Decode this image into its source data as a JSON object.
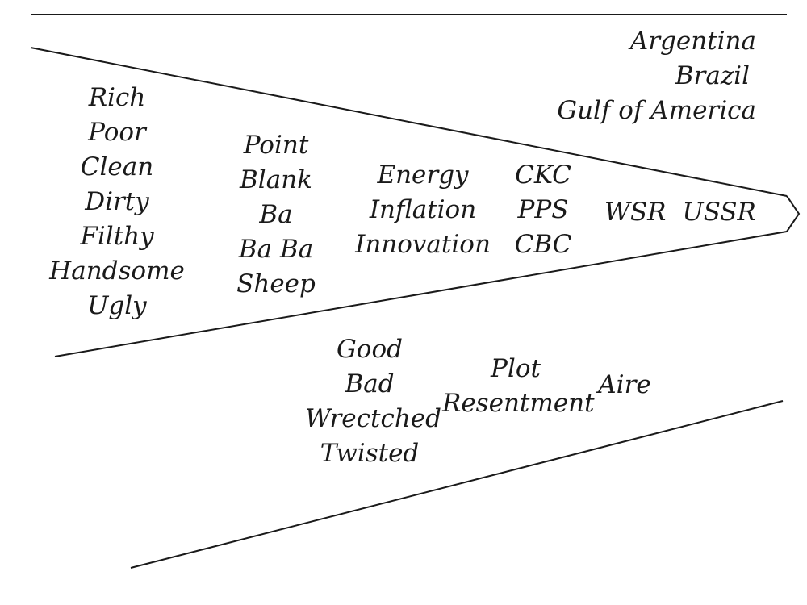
{
  "arrow_terms": {
    "col1": [
      "Rich",
      "Poor",
      "Clean",
      "Dirty",
      "Filthy",
      "Handsome",
      "Ugly"
    ],
    "col2": [
      "Point",
      "Blank",
      "Ba",
      "Ba Ba",
      "Sheep"
    ],
    "col3": [
      "Energy",
      "Inflation",
      "Innovation"
    ],
    "col4": [
      "CKC",
      "PPS",
      "CBC"
    ],
    "tip": [
      "WSR",
      "USSR"
    ]
  },
  "upper_right_terms": [
    "Argentina",
    "Brazil",
    "Gulf of America"
  ],
  "lower_terms": {
    "col1": [
      "Good",
      "Bad",
      "Wrectched",
      "Twisted"
    ],
    "col2": [
      "Plot",
      "Resentment"
    ],
    "col3": [
      "Aire"
    ]
  }
}
